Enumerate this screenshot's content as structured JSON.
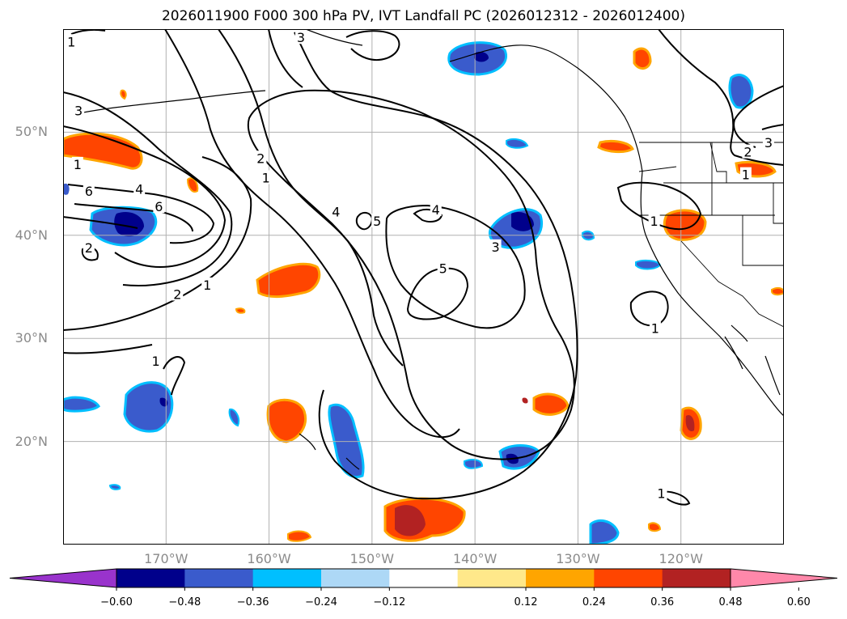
{
  "title": "2026011900 F000 300 hPa PV, IVT Landfall PC (2026012312 - 2026012400)",
  "map": {
    "lon_range": [
      -180,
      -110
    ],
    "lat_range": [
      10,
      60
    ],
    "lat_ticks": [
      {
        "value": 50,
        "label": "50°N"
      },
      {
        "value": 40,
        "label": "40°N"
      },
      {
        "value": 30,
        "label": "30°N"
      },
      {
        "value": 20,
        "label": "20°N"
      }
    ],
    "lon_ticks": [
      {
        "value": -170,
        "label": "170°W"
      },
      {
        "value": -160,
        "label": "160°W"
      },
      {
        "value": -150,
        "label": "150°W"
      },
      {
        "value": -140,
        "label": "140°W"
      },
      {
        "value": -130,
        "label": "130°W"
      },
      {
        "value": -120,
        "label": "120°W"
      }
    ],
    "grid": true
  },
  "contours": {
    "color": "#000000",
    "labels": [
      {
        "text": "1",
        "lon": -179.2,
        "lat": 58.8
      },
      {
        "text": "3",
        "lon": -178.5,
        "lat": 52.1
      },
      {
        "text": "1",
        "lon": -178.6,
        "lat": 46.9
      },
      {
        "text": "6",
        "lon": -177.5,
        "lat": 44.3
      },
      {
        "text": "4",
        "lon": -172.6,
        "lat": 44.5
      },
      {
        "text": "6",
        "lon": -170.7,
        "lat": 42.8
      },
      {
        "text": "2",
        "lon": -177.5,
        "lat": 38.8
      },
      {
        "text": "2",
        "lon": -168.9,
        "lat": 34.3
      },
      {
        "text": "1",
        "lon": -166.0,
        "lat": 35.2
      },
      {
        "text": "1",
        "lon": -171.0,
        "lat": 27.8
      },
      {
        "text": "2",
        "lon": -160.8,
        "lat": 47.5
      },
      {
        "text": "1",
        "lon": -160.3,
        "lat": 45.6
      },
      {
        "text": "4",
        "lon": -153.5,
        "lat": 42.3
      },
      {
        "text": "5",
        "lon": -149.5,
        "lat": 41.4
      },
      {
        "text": "4",
        "lon": -143.8,
        "lat": 42.5
      },
      {
        "text": "5",
        "lon": -143.1,
        "lat": 36.8
      },
      {
        "text": "3",
        "lon": -138.0,
        "lat": 38.9
      },
      {
        "text": "1",
        "lon": -122.6,
        "lat": 41.4
      },
      {
        "text": "1",
        "lon": -122.5,
        "lat": 31.0
      },
      {
        "text": "2",
        "lon": -113.5,
        "lat": 48.1
      },
      {
        "text": "1",
        "lon": -113.7,
        "lat": 45.9
      },
      {
        "text": "3",
        "lon": -111.5,
        "lat": 49.0
      },
      {
        "text": "1",
        "lon": -121.9,
        "lat": 15.0
      },
      {
        "text": "3",
        "lon": -156.9,
        "lat": 59.2
      }
    ]
  },
  "colorbar": {
    "colors": [
      "#9933cc",
      "#00008b",
      "#3a5bcc",
      "#00bfff",
      "#add8f6",
      "#ffffff",
      "#ffe88a",
      "#ffa500",
      "#ff4500",
      "#b22222",
      "#ff88aa"
    ],
    "tick_values": [
      "−0.60",
      "−0.48",
      "−0.36",
      "−0.24",
      "−0.12",
      "0.12",
      "0.24",
      "0.36",
      "0.48",
      "0.60"
    ]
  }
}
